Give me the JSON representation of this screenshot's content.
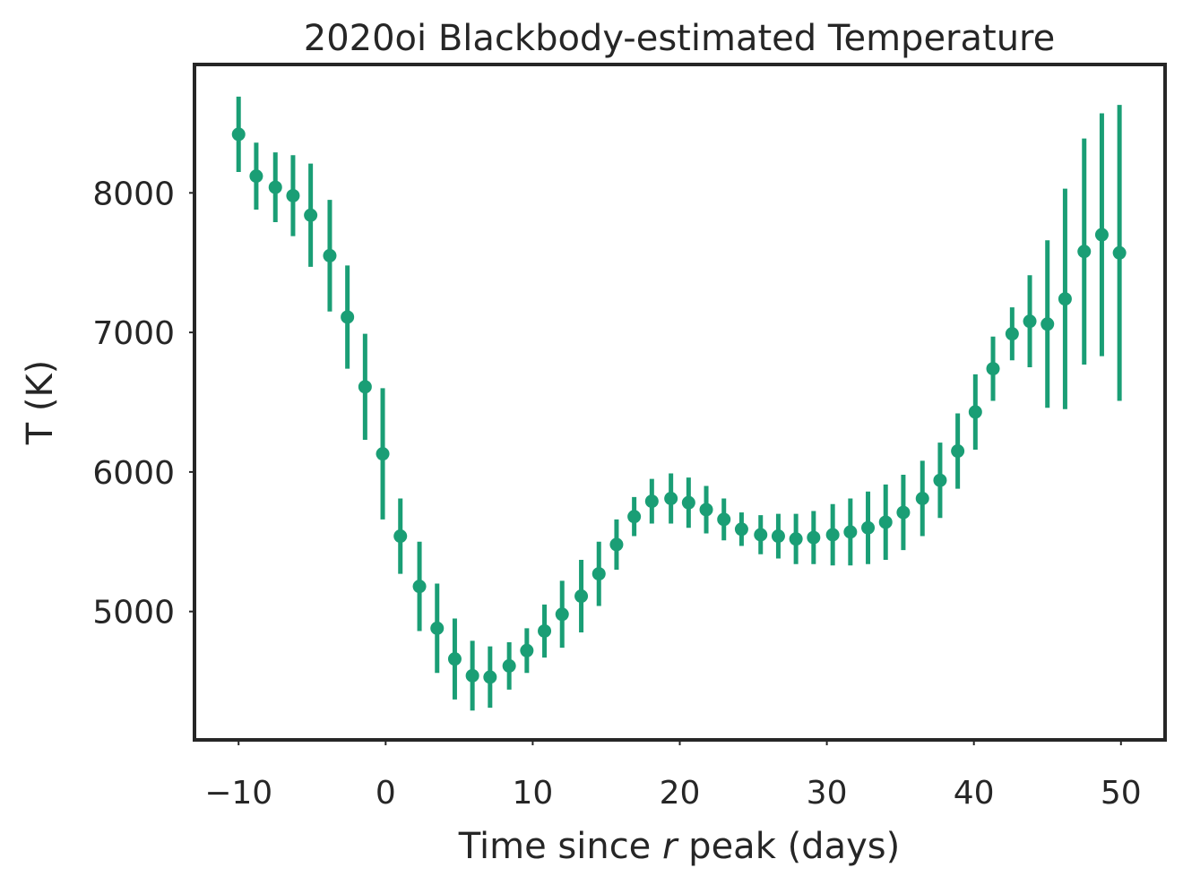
{
  "chart_data": {
    "type": "scatter",
    "title": "2020oi Blackbody-estimated Temperature",
    "xlabel_prefix": "Time since ",
    "xlabel_italic": "r",
    "xlabel_suffix": " peak (days)",
    "ylabel": "T (K)",
    "xlim": [
      -13,
      53
    ],
    "ylim": [
      4080,
      8920
    ],
    "xticks": [
      -10,
      0,
      10,
      20,
      30,
      40,
      50
    ],
    "xtick_labels": [
      "−10",
      "0",
      "10",
      "20",
      "30",
      "40",
      "50"
    ],
    "yticks": [
      5000,
      6000,
      7000,
      8000
    ],
    "ytick_labels": [
      "5000",
      "6000",
      "7000",
      "8000"
    ],
    "grid": false,
    "color": "#1a9e75",
    "series": [
      {
        "x": [
          -10.0,
          -8.8,
          -7.5,
          -6.3,
          -5.1,
          -3.8,
          -2.6,
          -1.4,
          -0.2,
          1.0,
          2.3,
          3.5,
          4.7,
          5.9,
          7.1,
          8.4,
          9.6,
          10.8,
          12.0,
          13.3,
          14.5,
          15.7,
          16.9,
          18.1,
          19.4,
          20.6,
          21.8,
          23.0,
          24.2,
          25.5,
          26.7,
          27.9,
          29.1,
          30.4,
          31.6,
          32.8,
          34.0,
          35.2,
          36.5,
          37.7,
          38.9,
          40.1,
          41.3,
          42.6,
          43.8,
          45.0,
          46.2,
          47.5,
          48.7,
          49.9
        ],
        "y": [
          8420,
          8120,
          8040,
          7980,
          7840,
          7550,
          7110,
          6610,
          6130,
          5540,
          5180,
          4880,
          4660,
          4540,
          4530,
          4610,
          4720,
          4860,
          4980,
          5110,
          5270,
          5480,
          5680,
          5790,
          5810,
          5780,
          5730,
          5660,
          5590,
          5550,
          5540,
          5520,
          5530,
          5550,
          5570,
          5600,
          5640,
          5710,
          5810,
          5940,
          6150,
          6430,
          6740,
          6990,
          7080,
          7060,
          7240,
          7580,
          7700,
          7570
        ],
        "yerr": [
          270,
          240,
          250,
          290,
          370,
          400,
          370,
          380,
          470,
          270,
          320,
          320,
          290,
          250,
          220,
          170,
          160,
          190,
          240,
          260,
          230,
          180,
          140,
          160,
          180,
          180,
          170,
          150,
          120,
          140,
          160,
          180,
          190,
          220,
          240,
          260,
          270,
          270,
          270,
          270,
          270,
          270,
          230,
          190,
          330,
          600,
          790,
          810,
          870,
          1060
        ]
      }
    ]
  }
}
